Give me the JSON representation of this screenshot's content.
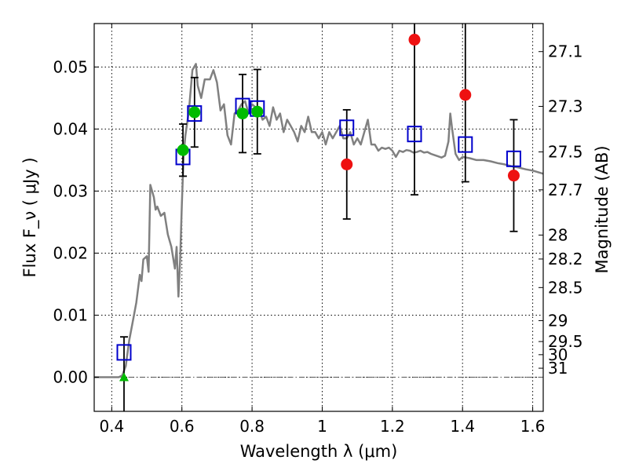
{
  "chart_data": {
    "type": "scatter",
    "xlabel": "Wavelength  λ (μm)",
    "ylabel": "Flux  F_ν  ( μJy )",
    "y2label": "Magnitude (AB)",
    "xlim": [
      0.35,
      1.63
    ],
    "ylim": [
      -0.0055,
      0.057
    ],
    "grid": true,
    "x_ticks": [
      0.4,
      0.6,
      0.8,
      1.0,
      1.2,
      1.4,
      1.6
    ],
    "x_tick_labels": [
      "0.4",
      "0.6",
      "0.8",
      "1",
      "1.2",
      "1.4",
      "1.6"
    ],
    "y_ticks": [
      0.0,
      0.01,
      0.02,
      0.03,
      0.04,
      0.05
    ],
    "y_tick_labels": [
      "0.00",
      "0.01",
      "0.02",
      "0.03",
      "0.04",
      "0.05"
    ],
    "mag_ticks": [
      {
        "label": "27.1",
        "flux": 0.05248
      },
      {
        "label": "27.3",
        "flux": 0.04365
      },
      {
        "label": "27.5",
        "flux": 0.03631
      },
      {
        "label": "27.7",
        "flux": 0.0302
      },
      {
        "label": "28",
        "flux": 0.02291
      },
      {
        "label": "28.2",
        "flux": 0.01905
      },
      {
        "label": "28.5",
        "flux": 0.01445
      },
      {
        "label": "29",
        "flux": 0.00912
      },
      {
        "label": "29.5",
        "flux": 0.00575
      },
      {
        "label": "30",
        "flux": 0.00363
      },
      {
        "label": "31",
        "flux": 0.00145
      }
    ],
    "colors": {
      "model": "#808080",
      "model_fluxes": "#0000cc",
      "detections_optical": "#00bb00",
      "detections_ir": "#ee1111",
      "errorbars": "#000000"
    },
    "model_spectrum": [
      [
        0.35,
        0.0
      ],
      [
        0.42,
        0.0
      ],
      [
        0.43,
        0.0003
      ],
      [
        0.44,
        0.0018
      ],
      [
        0.45,
        0.006
      ],
      [
        0.46,
        0.009
      ],
      [
        0.47,
        0.012
      ],
      [
        0.48,
        0.0165
      ],
      [
        0.485,
        0.0155
      ],
      [
        0.49,
        0.019
      ],
      [
        0.5,
        0.0195
      ],
      [
        0.505,
        0.017
      ],
      [
        0.51,
        0.031
      ],
      [
        0.52,
        0.029
      ],
      [
        0.525,
        0.027
      ],
      [
        0.53,
        0.0275
      ],
      [
        0.54,
        0.026
      ],
      [
        0.55,
        0.0265
      ],
      [
        0.56,
        0.023
      ],
      [
        0.57,
        0.021
      ],
      [
        0.58,
        0.0175
      ],
      [
        0.585,
        0.021
      ],
      [
        0.59,
        0.013
      ],
      [
        0.595,
        0.019
      ],
      [
        0.6,
        0.028
      ],
      [
        0.605,
        0.036
      ],
      [
        0.61,
        0.039
      ],
      [
        0.62,
        0.043
      ],
      [
        0.63,
        0.0495
      ],
      [
        0.64,
        0.0505
      ],
      [
        0.645,
        0.047
      ],
      [
        0.655,
        0.045
      ],
      [
        0.665,
        0.048
      ],
      [
        0.68,
        0.048
      ],
      [
        0.69,
        0.0495
      ],
      [
        0.7,
        0.0475
      ],
      [
        0.71,
        0.043
      ],
      [
        0.72,
        0.044
      ],
      [
        0.73,
        0.039
      ],
      [
        0.74,
        0.0375
      ],
      [
        0.75,
        0.0425
      ],
      [
        0.76,
        0.043
      ],
      [
        0.77,
        0.044
      ],
      [
        0.78,
        0.0445
      ],
      [
        0.79,
        0.0425
      ],
      [
        0.8,
        0.044
      ],
      [
        0.81,
        0.0435
      ],
      [
        0.82,
        0.043
      ],
      [
        0.83,
        0.0415
      ],
      [
        0.84,
        0.042
      ],
      [
        0.85,
        0.0405
      ],
      [
        0.86,
        0.0435
      ],
      [
        0.87,
        0.0415
      ],
      [
        0.88,
        0.0425
      ],
      [
        0.89,
        0.0395
      ],
      [
        0.9,
        0.0415
      ],
      [
        0.91,
        0.0405
      ],
      [
        0.92,
        0.0395
      ],
      [
        0.93,
        0.038
      ],
      [
        0.94,
        0.0405
      ],
      [
        0.95,
        0.0395
      ],
      [
        0.96,
        0.042
      ],
      [
        0.97,
        0.0395
      ],
      [
        0.98,
        0.0395
      ],
      [
        0.99,
        0.0385
      ],
      [
        1.0,
        0.0395
      ],
      [
        1.01,
        0.0375
      ],
      [
        1.02,
        0.0395
      ],
      [
        1.03,
        0.0385
      ],
      [
        1.04,
        0.0395
      ],
      [
        1.05,
        0.0405
      ],
      [
        1.06,
        0.0385
      ],
      [
        1.07,
        0.0385
      ],
      [
        1.08,
        0.0395
      ],
      [
        1.09,
        0.0375
      ],
      [
        1.1,
        0.0385
      ],
      [
        1.11,
        0.0375
      ],
      [
        1.12,
        0.0395
      ],
      [
        1.13,
        0.0415
      ],
      [
        1.14,
        0.0375
      ],
      [
        1.15,
        0.0375
      ],
      [
        1.16,
        0.0365
      ],
      [
        1.17,
        0.037
      ],
      [
        1.18,
        0.0368
      ],
      [
        1.19,
        0.037
      ],
      [
        1.2,
        0.0365
      ],
      [
        1.21,
        0.0355
      ],
      [
        1.22,
        0.0365
      ],
      [
        1.23,
        0.0363
      ],
      [
        1.24,
        0.0366
      ],
      [
        1.25,
        0.0365
      ],
      [
        1.26,
        0.0362
      ],
      [
        1.27,
        0.0363
      ],
      [
        1.28,
        0.0365
      ],
      [
        1.29,
        0.0362
      ],
      [
        1.3,
        0.0363
      ],
      [
        1.31,
        0.036
      ],
      [
        1.32,
        0.0358
      ],
      [
        1.33,
        0.0356
      ],
      [
        1.34,
        0.0354
      ],
      [
        1.35,
        0.0357
      ],
      [
        1.36,
        0.038
      ],
      [
        1.365,
        0.0425
      ],
      [
        1.37,
        0.0402
      ],
      [
        1.38,
        0.036
      ],
      [
        1.39,
        0.035
      ],
      [
        1.4,
        0.0355
      ],
      [
        1.42,
        0.0353
      ],
      [
        1.44,
        0.035
      ],
      [
        1.46,
        0.035
      ],
      [
        1.48,
        0.0348
      ],
      [
        1.5,
        0.0345
      ],
      [
        1.52,
        0.0343
      ],
      [
        1.54,
        0.034
      ],
      [
        1.56,
        0.0338
      ],
      [
        1.58,
        0.0335
      ],
      [
        1.6,
        0.0333
      ],
      [
        1.63,
        0.0328
      ]
    ],
    "model_fluxes": [
      {
        "x": 0.435,
        "y": 0.004
      },
      {
        "x": 0.603,
        "y": 0.0355
      },
      {
        "x": 0.636,
        "y": 0.0425
      },
      {
        "x": 0.773,
        "y": 0.0437
      },
      {
        "x": 0.815,
        "y": 0.0433
      },
      {
        "x": 1.07,
        "y": 0.0402
      },
      {
        "x": 1.263,
        "y": 0.0392
      },
      {
        "x": 1.408,
        "y": 0.0375
      },
      {
        "x": 1.546,
        "y": 0.0352
      }
    ],
    "observed_optical": [
      {
        "x": 0.435,
        "y": 0.0,
        "marker": "triangle",
        "err": 0.0065
      },
      {
        "x": 0.603,
        "y": 0.0366,
        "err": 0.0042
      },
      {
        "x": 0.636,
        "y": 0.0427,
        "err": 0.0056
      },
      {
        "x": 0.773,
        "y": 0.0425,
        "err": 0.0063
      },
      {
        "x": 0.815,
        "y": 0.0428,
        "err": 0.0068
      }
    ],
    "observed_ir": [
      {
        "x": 1.07,
        "y": 0.0343,
        "err": 0.0088
      },
      {
        "x": 1.263,
        "y": 0.0544,
        "err": 0.025
      },
      {
        "x": 1.408,
        "y": 0.0455,
        "err": 0.014
      },
      {
        "x": 1.546,
        "y": 0.0325,
        "err": 0.009
      }
    ]
  }
}
